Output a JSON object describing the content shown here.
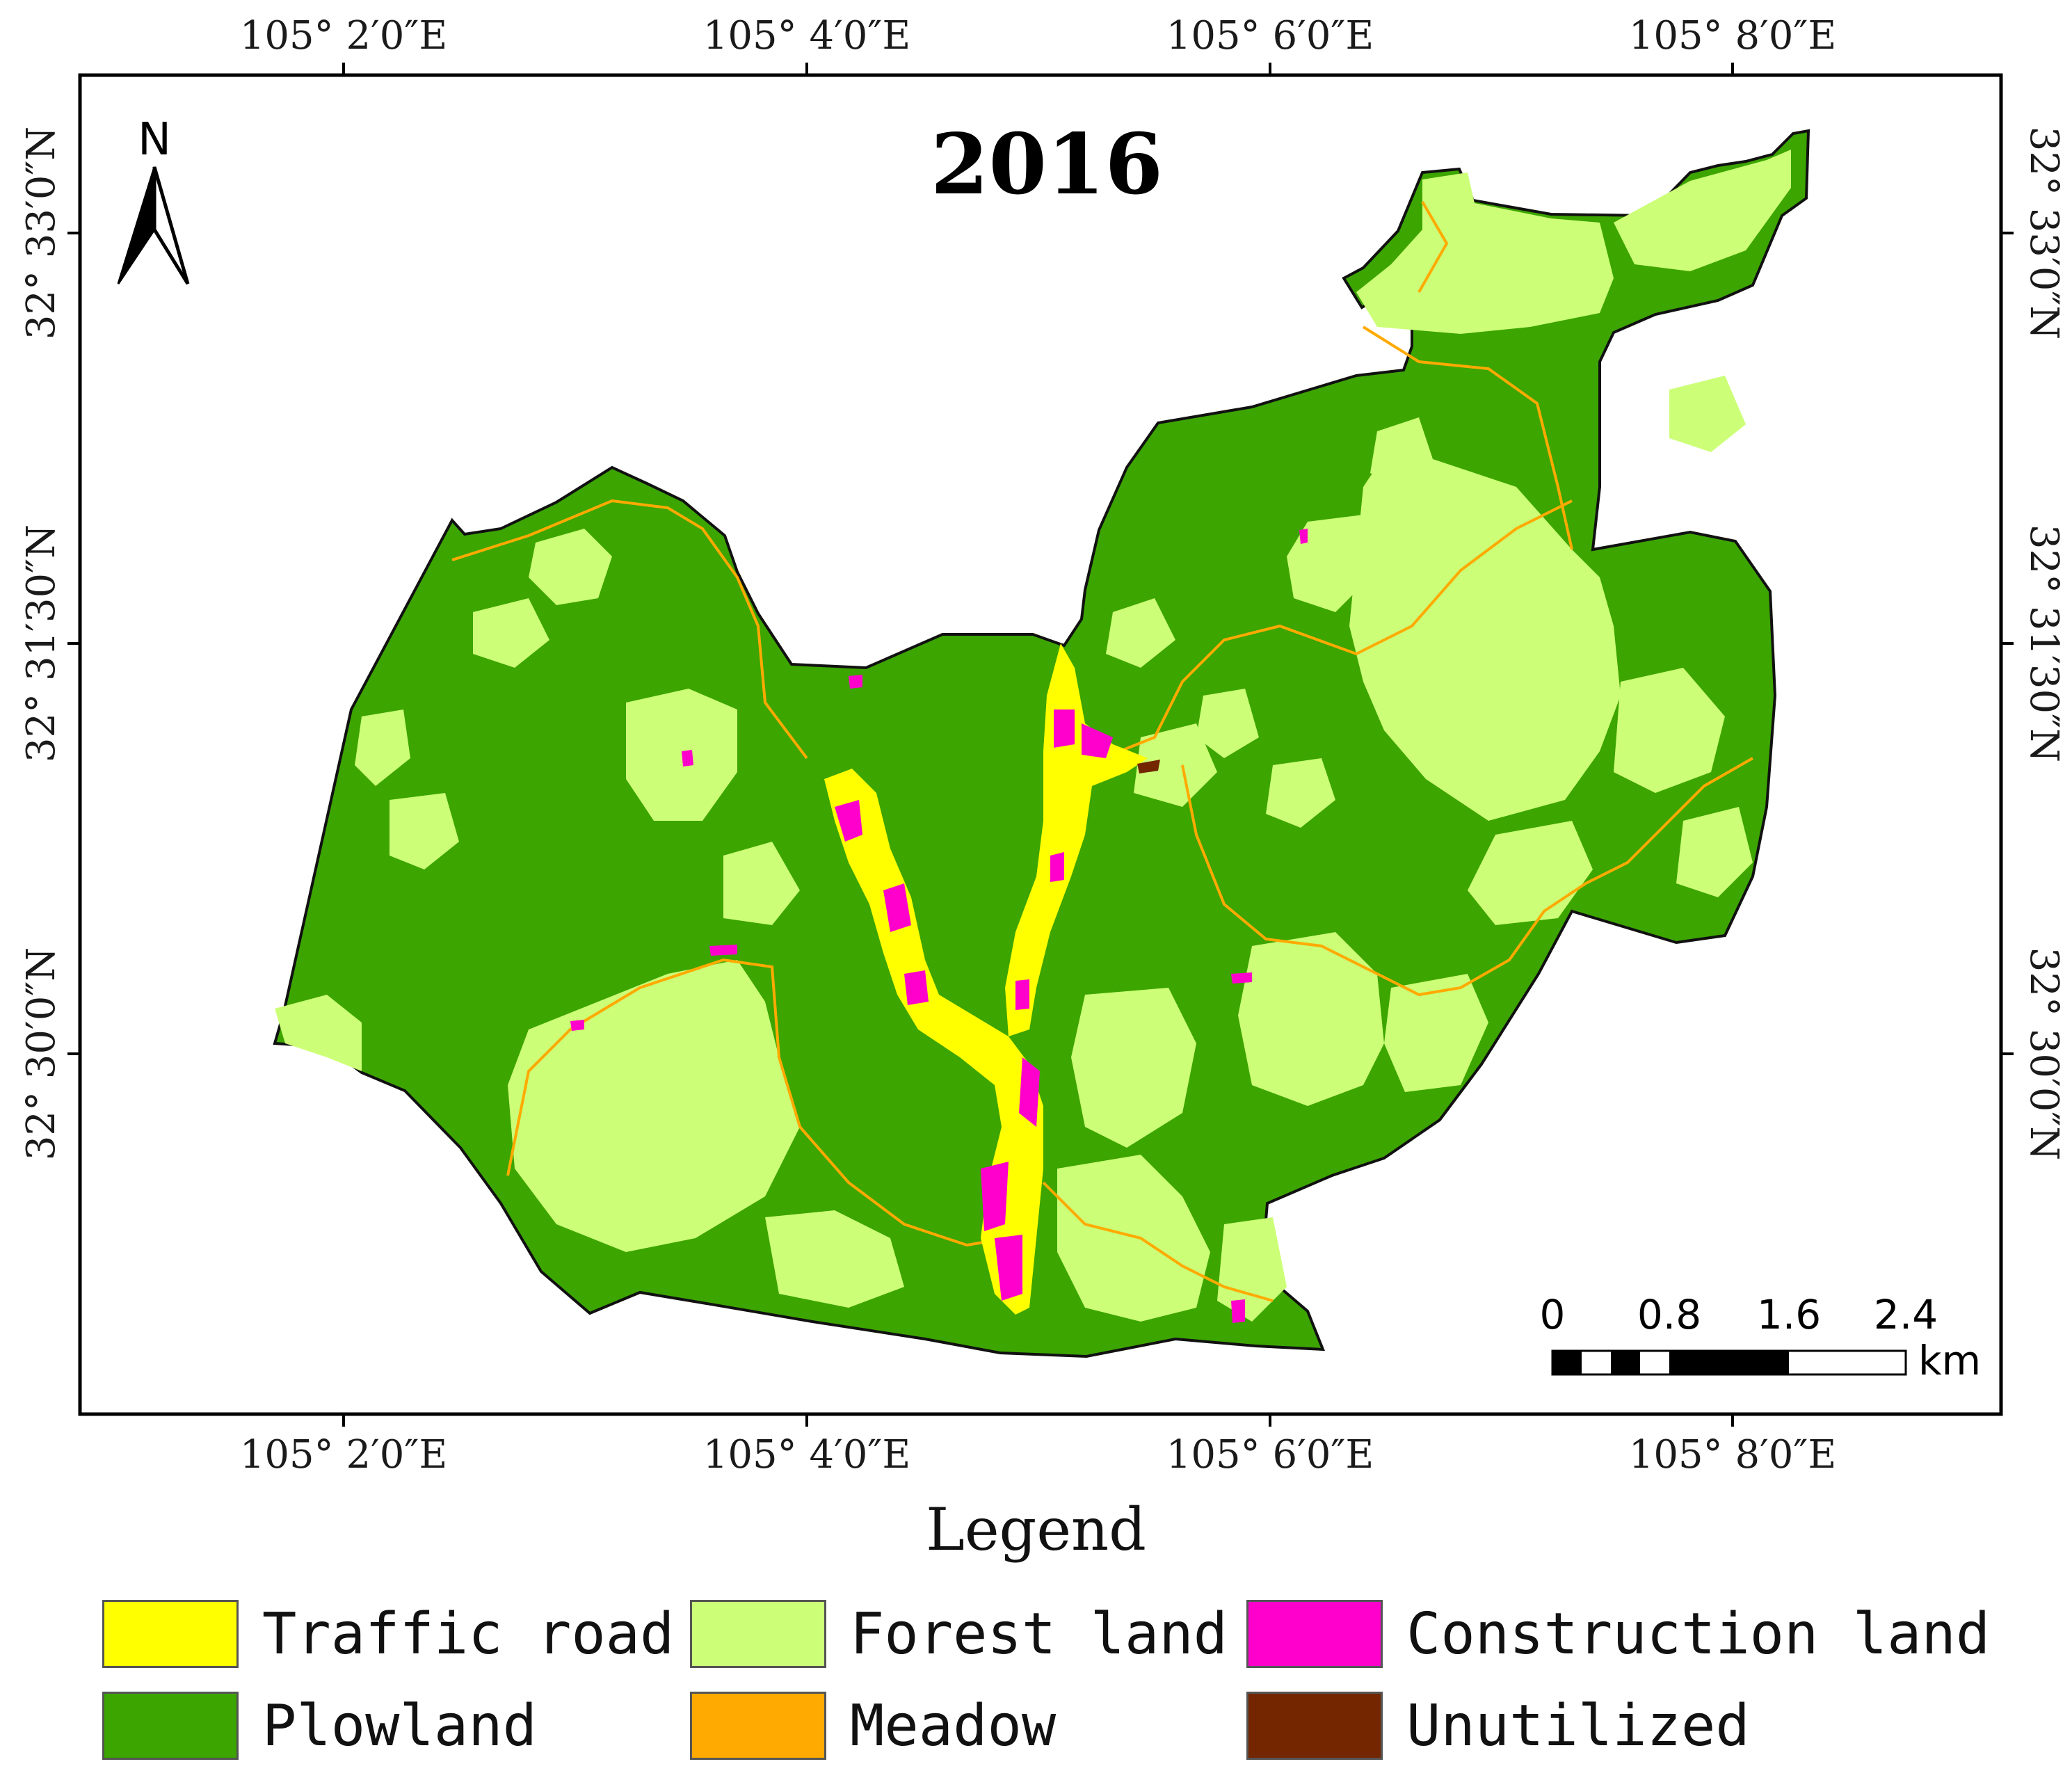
{
  "map": {
    "title": "2016",
    "north_label": "N",
    "scale": {
      "labels": [
        "0",
        "0.8",
        "1.6",
        "2.4"
      ],
      "unit": "km"
    },
    "lon_ticks": [
      "105° 2′0″E",
      "105° 4′0″E",
      "105° 6′0″E",
      "105° 8′0″E"
    ],
    "lat_ticks": [
      "32° 33′0″N",
      "32° 31′30″N",
      "32° 30′0″N"
    ]
  },
  "legend": {
    "title": "Legend",
    "items": [
      {
        "label": "Traffic road",
        "color": "#ffff00"
      },
      {
        "label": "Forest land",
        "color": "#ccff77"
      },
      {
        "label": "Construction land",
        "color": "#ff00cc"
      },
      {
        "label": "Plowland",
        "color": "#3ca500"
      },
      {
        "label": "Meadow",
        "color": "#ffaa00"
      },
      {
        "label": "Unutilized",
        "color": "#732600"
      }
    ]
  }
}
